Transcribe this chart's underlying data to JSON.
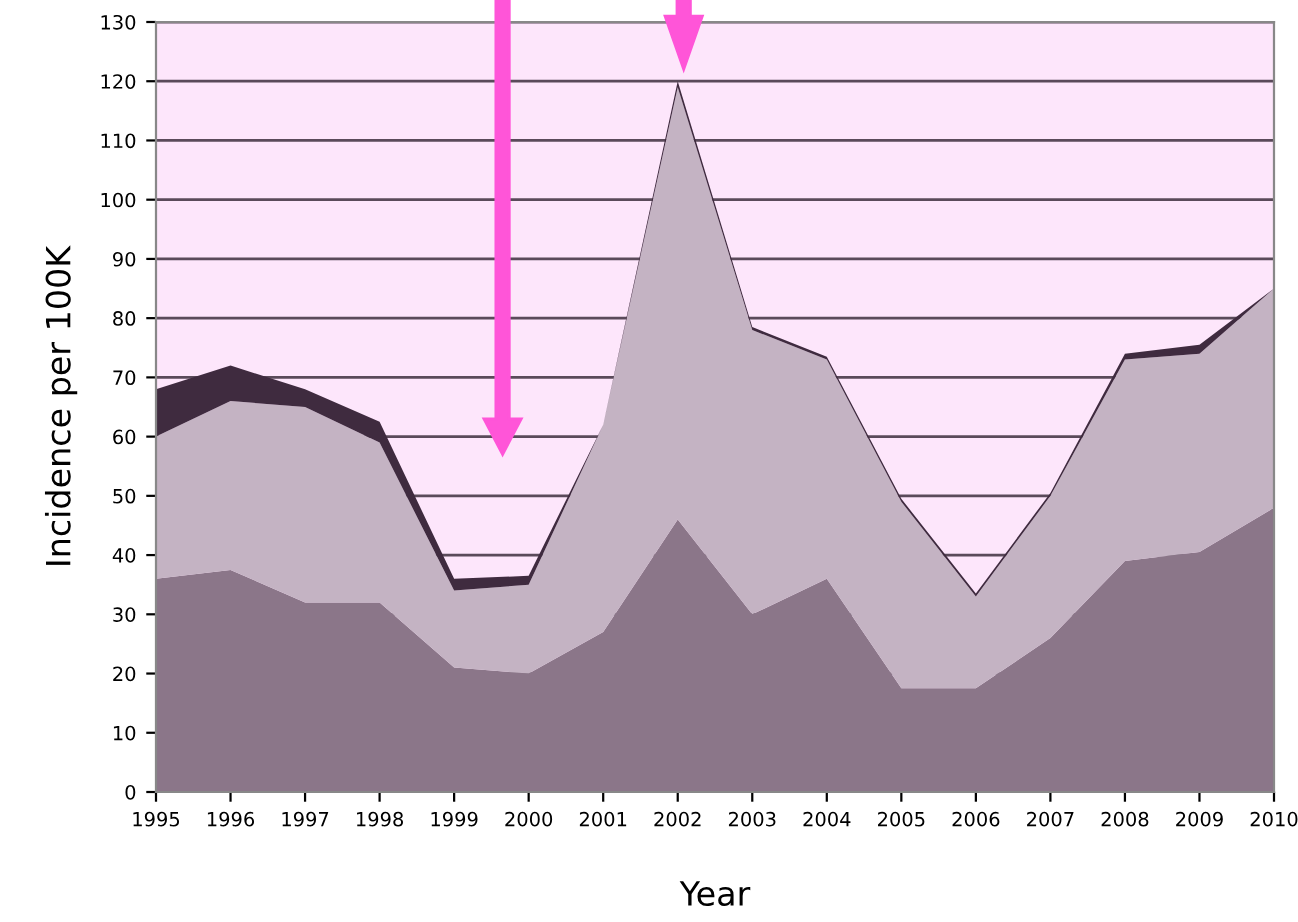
{
  "chart_data": {
    "type": "area",
    "stacked": true,
    "xlabel": "Year",
    "ylabel": "Incidence per 100K",
    "x": [
      1995,
      1996,
      1997,
      1998,
      1999,
      2000,
      2001,
      2002,
      2003,
      2004,
      2005,
      2006,
      2007,
      2008,
      2009,
      2010
    ],
    "series": [
      {
        "color": "#8b7689",
        "values": [
          36,
          37.5,
          32,
          32,
          21,
          20,
          27,
          46,
          30,
          36,
          17.5,
          17.5,
          26,
          39,
          40.5,
          48
        ]
      },
      {
        "color": "#c4b3c3",
        "values": [
          24,
          28.5,
          33,
          27,
          13,
          15,
          35,
          73,
          48,
          37,
          31.5,
          15.5,
          24,
          34,
          33.5,
          37
        ]
      },
      {
        "color": "#3f2b3f",
        "values": [
          8,
          6,
          3,
          3.5,
          2,
          1.5,
          0,
          1,
          0.5,
          0.5,
          0.5,
          0.5,
          0.5,
          1,
          1.5,
          0
        ]
      }
    ],
    "xlim": [
      1995,
      2010
    ],
    "xticks": [
      1995,
      1996,
      1997,
      1998,
      1999,
      2000,
      2001,
      2002,
      2003,
      2004,
      2005,
      2006,
      2007,
      2008,
      2009,
      2010
    ],
    "ylim": [
      0,
      130
    ],
    "yticks": [
      0,
      10,
      20,
      30,
      40,
      50,
      60,
      70,
      80,
      90,
      100,
      110,
      120,
      130
    ],
    "grid": "y",
    "legend": false
  }
}
